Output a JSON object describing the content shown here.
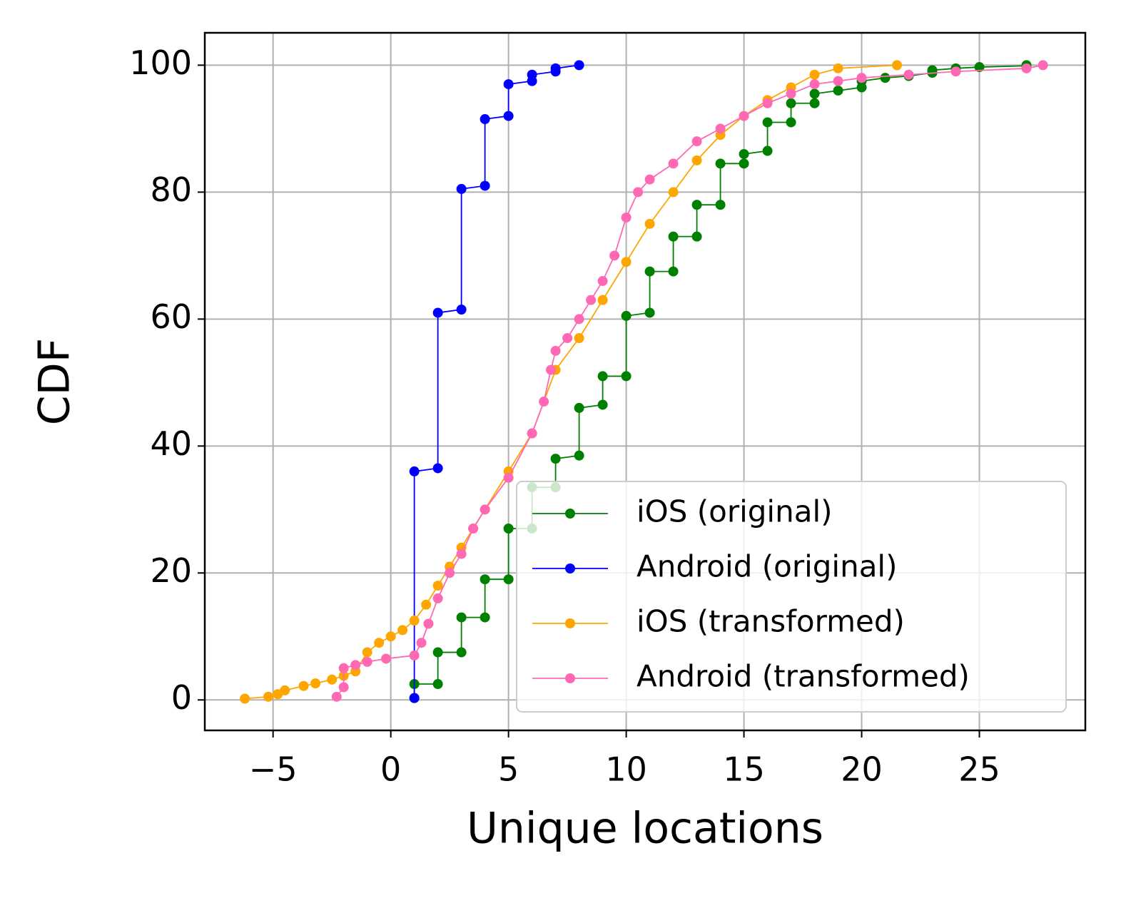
{
  "chart_data": {
    "type": "line",
    "x_label": "Unique locations",
    "y_label": "CDF",
    "xlim": [
      -7.9,
      29.5
    ],
    "ylim": [
      -4.8,
      105.1
    ],
    "xticks": [
      {
        "value": -5,
        "label": "−5"
      },
      0,
      5,
      10,
      15,
      20,
      25
    ],
    "yticks": [
      0,
      20,
      40,
      60,
      80,
      100
    ],
    "grid": true,
    "legend": "lower right",
    "series": [
      {
        "name": "iOS (original)",
        "color": "#008000",
        "x": [
          1,
          1,
          2,
          2,
          3,
          3,
          4,
          4,
          5,
          5,
          6,
          6,
          7,
          7,
          8,
          8,
          9,
          9,
          10,
          10,
          11,
          11,
          12,
          12,
          13,
          13,
          14,
          14,
          15,
          15,
          16,
          16,
          17,
          17,
          18,
          18,
          19,
          20,
          20,
          21,
          22,
          23,
          23,
          24,
          25,
          27,
          27
        ],
        "y": [
          0.3,
          2.5,
          2.5,
          7.5,
          7.5,
          13,
          13,
          19,
          19,
          27,
          27,
          33.5,
          33.5,
          38,
          38.5,
          46,
          46.5,
          51,
          51,
          60.5,
          61,
          67.5,
          67.5,
          73,
          73,
          78,
          78,
          84.5,
          84.5,
          86,
          86.5,
          91,
          91,
          94,
          94,
          95.5,
          96,
          96.5,
          97.5,
          98,
          98.3,
          98.8,
          99.2,
          99.5,
          99.7,
          99.9,
          100
        ]
      },
      {
        "name": "Android (original)",
        "color": "#0000ff",
        "x": [
          1,
          1,
          2,
          2,
          3,
          3,
          4,
          4,
          5,
          5,
          6,
          6,
          7,
          7,
          8
        ],
        "y": [
          0.3,
          36,
          36.5,
          61,
          61.5,
          80.5,
          81,
          91.5,
          92,
          97,
          97.5,
          98.5,
          99,
          99.5,
          100
        ]
      },
      {
        "name": "iOS (transformed)",
        "color": "#ffa500",
        "x": [
          -6.2,
          -5.2,
          -4.8,
          -4.5,
          -3.7,
          -3.2,
          -2.5,
          -2,
          -1.5,
          -1,
          -0.5,
          0,
          0.5,
          1,
          1.5,
          2,
          2.5,
          3,
          3.5,
          4,
          5,
          6,
          7,
          8,
          9,
          10,
          11,
          12,
          13,
          14,
          15,
          16,
          17,
          18,
          19,
          21.5
        ],
        "y": [
          0.2,
          0.5,
          0.9,
          1.5,
          2.2,
          2.6,
          3.2,
          3.8,
          4.5,
          7.5,
          9,
          10,
          11,
          12.5,
          15,
          18,
          21,
          24,
          27,
          30,
          36,
          42,
          52,
          57,
          63,
          69,
          75,
          80,
          85,
          89,
          92,
          94.5,
          96.5,
          98.5,
          99.5,
          100
        ]
      },
      {
        "name": "Android (transformed)",
        "color": "#ff69b4",
        "x": [
          -2.3,
          -2,
          -2,
          -1.5,
          -1,
          -0.2,
          1,
          1.3,
          1.6,
          2,
          2.5,
          3,
          3.5,
          4,
          5,
          6,
          6.5,
          6.8,
          7,
          7.5,
          8,
          8.5,
          9,
          9.5,
          10,
          10.5,
          11,
          12,
          13,
          14,
          15,
          16,
          17,
          18,
          19,
          20,
          22,
          24,
          27,
          27.7
        ],
        "y": [
          0.5,
          2,
          5,
          5.5,
          6,
          6.5,
          7,
          9,
          12,
          16,
          20,
          23,
          27,
          30,
          35,
          42,
          47,
          52,
          55,
          57,
          60,
          63,
          66,
          70,
          76,
          80,
          82,
          84.5,
          88,
          90,
          92,
          94,
          95.5,
          97,
          97.5,
          98,
          98.5,
          99,
          99.5,
          100
        ]
      }
    ]
  }
}
